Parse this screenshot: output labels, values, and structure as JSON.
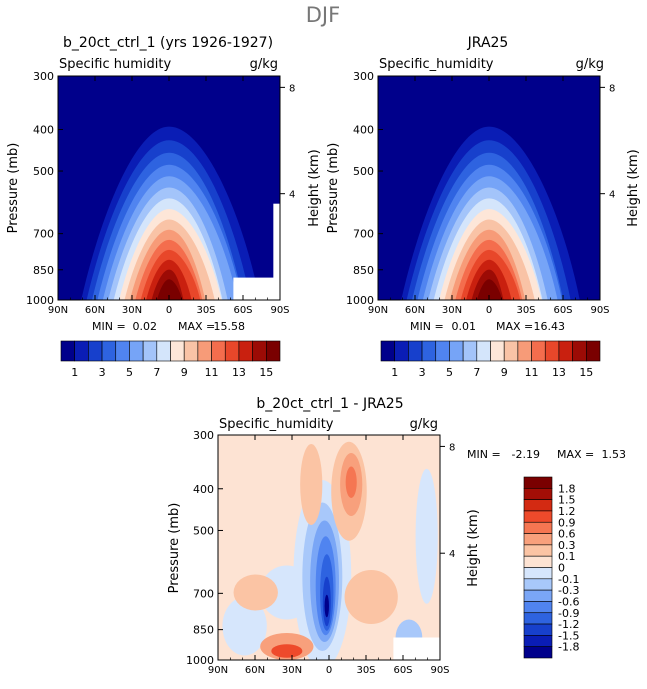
{
  "figure": {
    "title": "DJF"
  },
  "colors": {
    "ocean": "#00008b",
    "abs_scale": [
      "#00008b",
      "#0a1db5",
      "#1740cc",
      "#2e63e0",
      "#5084f0",
      "#76a4f7",
      "#a3c4fa",
      "#d4e5fb",
      "#fde6d8",
      "#f9c3a6",
      "#f79b78",
      "#f46d4d",
      "#e8472a",
      "#c9200f",
      "#9c0b05",
      "#7a0000"
    ],
    "diff_scale": [
      "#00008b",
      "#0a1db5",
      "#1740cc",
      "#2e63e0",
      "#5084f0",
      "#7aa6f6",
      "#a8c8fa",
      "#d6e6fc",
      "#fde3d3",
      "#fbc4a4",
      "#f8a07c",
      "#f57652",
      "#ee4a2b",
      "#d32a12",
      "#a30e06",
      "#7a0000"
    ]
  },
  "chart_data": [
    {
      "id": "model",
      "type": "heatmap",
      "title": "b_20ct_ctrl_1 (yrs 1926-1927)",
      "subtitle_left": "Specific humidity",
      "units": "g/kg",
      "ylabel": "Pressure (mb)",
      "ylabel_right": "Height (km)",
      "xlabel": "",
      "x_ticklabels": [
        "90N",
        "60N",
        "30N",
        "0",
        "30S",
        "60S",
        "90S"
      ],
      "y_ticklabels": [
        "300",
        "400",
        "500",
        "700",
        "850",
        "1000"
      ],
      "y_ticks_right": [
        "8",
        "4"
      ],
      "stats": {
        "min_label": "MIN =",
        "min": "0.02",
        "max_label": "MAX =",
        "max": "15.58"
      },
      "peak": {
        "lat": 0,
        "value": 15.58
      },
      "colorbar": {
        "labels": [
          "1",
          "3",
          "5",
          "7",
          "9",
          "11",
          "13",
          "15"
        ]
      }
    },
    {
      "id": "obs",
      "type": "heatmap",
      "title": "JRA25",
      "subtitle_left": "Specific_humidity",
      "units": "g/kg",
      "ylabel": "Pressure (mb)",
      "ylabel_right": "Height (km)",
      "xlabel": "",
      "x_ticklabels": [
        "90N",
        "60N",
        "30N",
        "0",
        "30S",
        "60S",
        "90S"
      ],
      "y_ticklabels": [
        "300",
        "400",
        "500",
        "700",
        "850",
        "1000"
      ],
      "y_ticks_right": [
        "8",
        "4"
      ],
      "stats": {
        "min_label": "MIN =",
        "min": "0.01",
        "max_label": "MAX =",
        "max": "16.43"
      },
      "peak": {
        "lat": 0,
        "value": 16.43
      },
      "colorbar": {
        "labels": [
          "1",
          "3",
          "5",
          "7",
          "9",
          "11",
          "13",
          "15"
        ]
      }
    },
    {
      "id": "diff",
      "type": "heatmap",
      "title": "b_20ct_ctrl_1 - JRA25",
      "subtitle_left": "Specific_humidity",
      "units": "g/kg",
      "ylabel": "Pressure (mb)",
      "ylabel_right": "Height (km)",
      "xlabel": "",
      "x_ticklabels": [
        "90N",
        "60N",
        "30N",
        "0",
        "30S",
        "60S",
        "90S"
      ],
      "y_ticklabels": [
        "300",
        "400",
        "500",
        "700",
        "850",
        "1000"
      ],
      "y_ticks_right": [
        "8",
        "4"
      ],
      "stats": {
        "min_label": "MIN =",
        "min": "-2.19",
        "max_label": "MAX =",
        "max": "1.53"
      },
      "colorbar": {
        "labels": [
          "1.8",
          "1.5",
          "1.2",
          "0.9",
          "0.6",
          "0.3",
          "0.1",
          "0",
          "-0.1",
          "-0.3",
          "-0.6",
          "-0.9",
          "-1.2",
          "-1.5",
          "-1.8"
        ]
      }
    }
  ]
}
